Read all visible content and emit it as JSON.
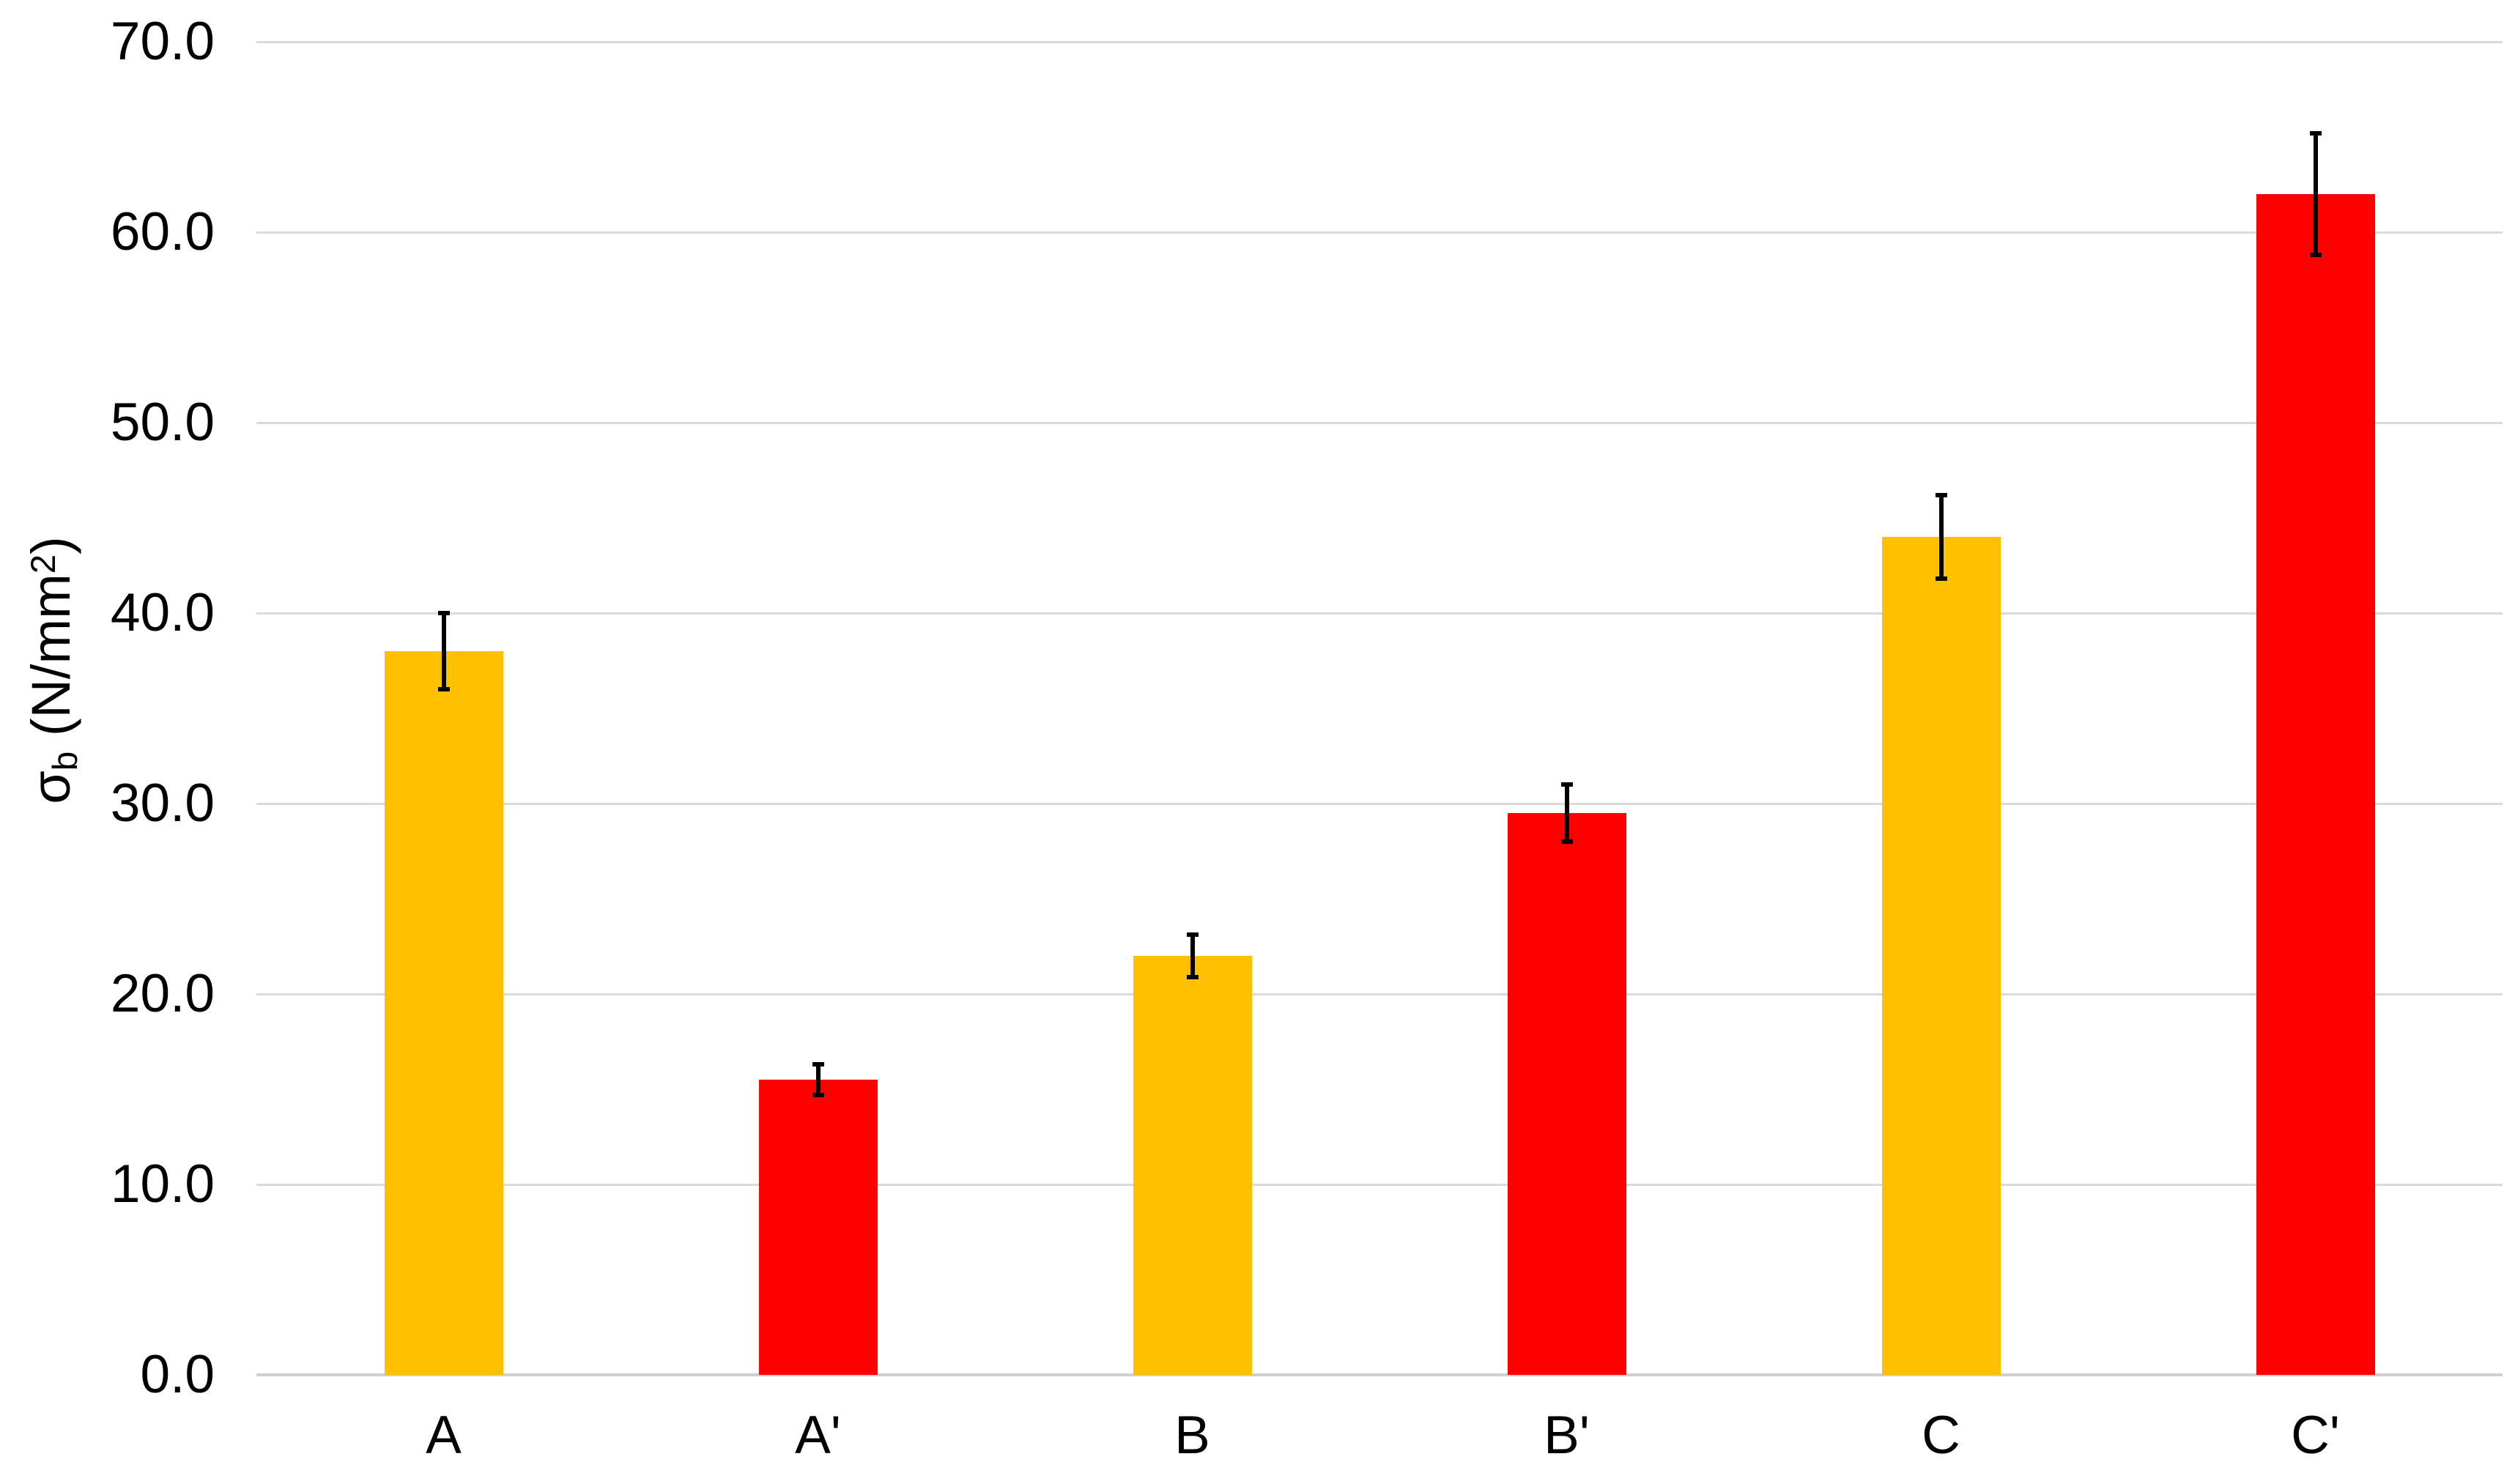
{
  "chart_data": {
    "type": "bar",
    "title": "",
    "xlabel": "",
    "ylabel": "σb (N/mm²)",
    "ylabel_parts": {
      "main1": "σ",
      "sub": "b",
      "main2": " (N/mm",
      "sup": "2",
      "main3": ")"
    },
    "categories": [
      "A",
      "A'",
      "B",
      "B'",
      "C",
      "C'"
    ],
    "values": [
      38.0,
      15.5,
      22.0,
      29.5,
      44.0,
      62.0
    ],
    "error_bars": [
      2.0,
      0.8,
      1.1,
      1.5,
      2.2,
      3.2
    ],
    "bar_colors": [
      "#FFC000",
      "#FF0000",
      "#FFC000",
      "#FF0000",
      "#FFC000",
      "#FF0000"
    ],
    "ylim": [
      0,
      70
    ],
    "ytick_step": 10,
    "ytick_labels": [
      "0.0",
      "10.0",
      "20.0",
      "30.0",
      "40.0",
      "50.0",
      "60.0",
      "70.0"
    ],
    "grid": true,
    "legend": false,
    "colors": {
      "background": "#FFFFFF",
      "gridline": "#D9D9D9",
      "axis_line": "#CFCFCF",
      "text": "#000000",
      "error_bar": "#000000",
      "series_gold": "#FFC000",
      "series_red": "#FF0000"
    }
  }
}
